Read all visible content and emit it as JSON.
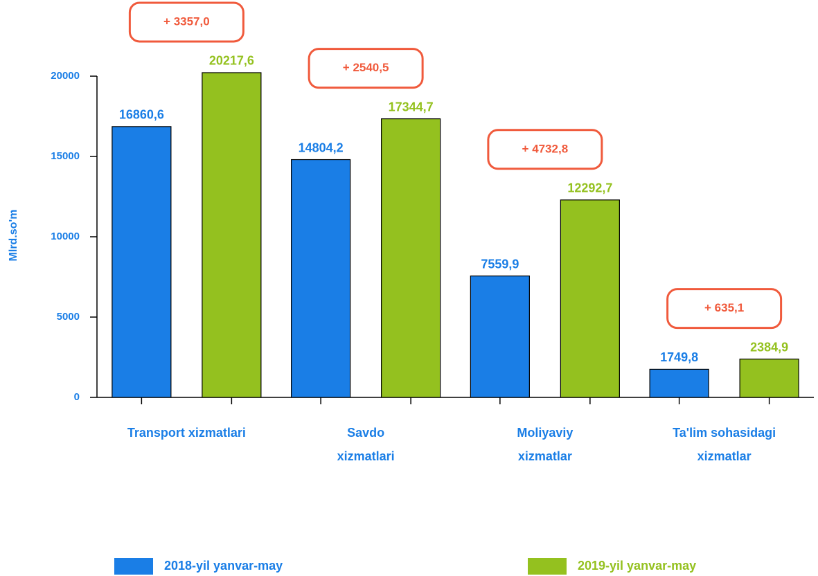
{
  "chart_data": {
    "type": "bar",
    "y_label": "Mlrd.so'm",
    "categories": [
      [
        "Transport xizmatlari"
      ],
      [
        "Savdo",
        "xizmatlari"
      ],
      [
        "Moliyaviy",
        "xizmatlar"
      ],
      [
        "Ta'lim sohasidagi",
        "xizmatlar"
      ]
    ],
    "series": [
      {
        "name": "2018-yil yanvar-may",
        "color": "#1a7ee6",
        "values": [
          16860.6,
          14804.2,
          7559.9,
          1749.8
        ],
        "value_labels": [
          "16860,6",
          "14804,2",
          "7559,9",
          "1749,8"
        ]
      },
      {
        "name": "2019-yil yanvar-may",
        "color": "#94c11f",
        "values": [
          20217.6,
          17344.7,
          12292.7,
          2384.9
        ],
        "value_labels": [
          "20217,6",
          "17344,7",
          "12292,7",
          "2384,9"
        ]
      }
    ],
    "annotations": [
      "+ 3357,0",
      "+ 2540,5",
      "+ 4732,8",
      "+ 635,1"
    ],
    "annotation_color": "#f05a3c",
    "ylim": [
      0,
      20000
    ],
    "yticks": [
      0,
      5000,
      10000,
      15000,
      20000
    ]
  }
}
